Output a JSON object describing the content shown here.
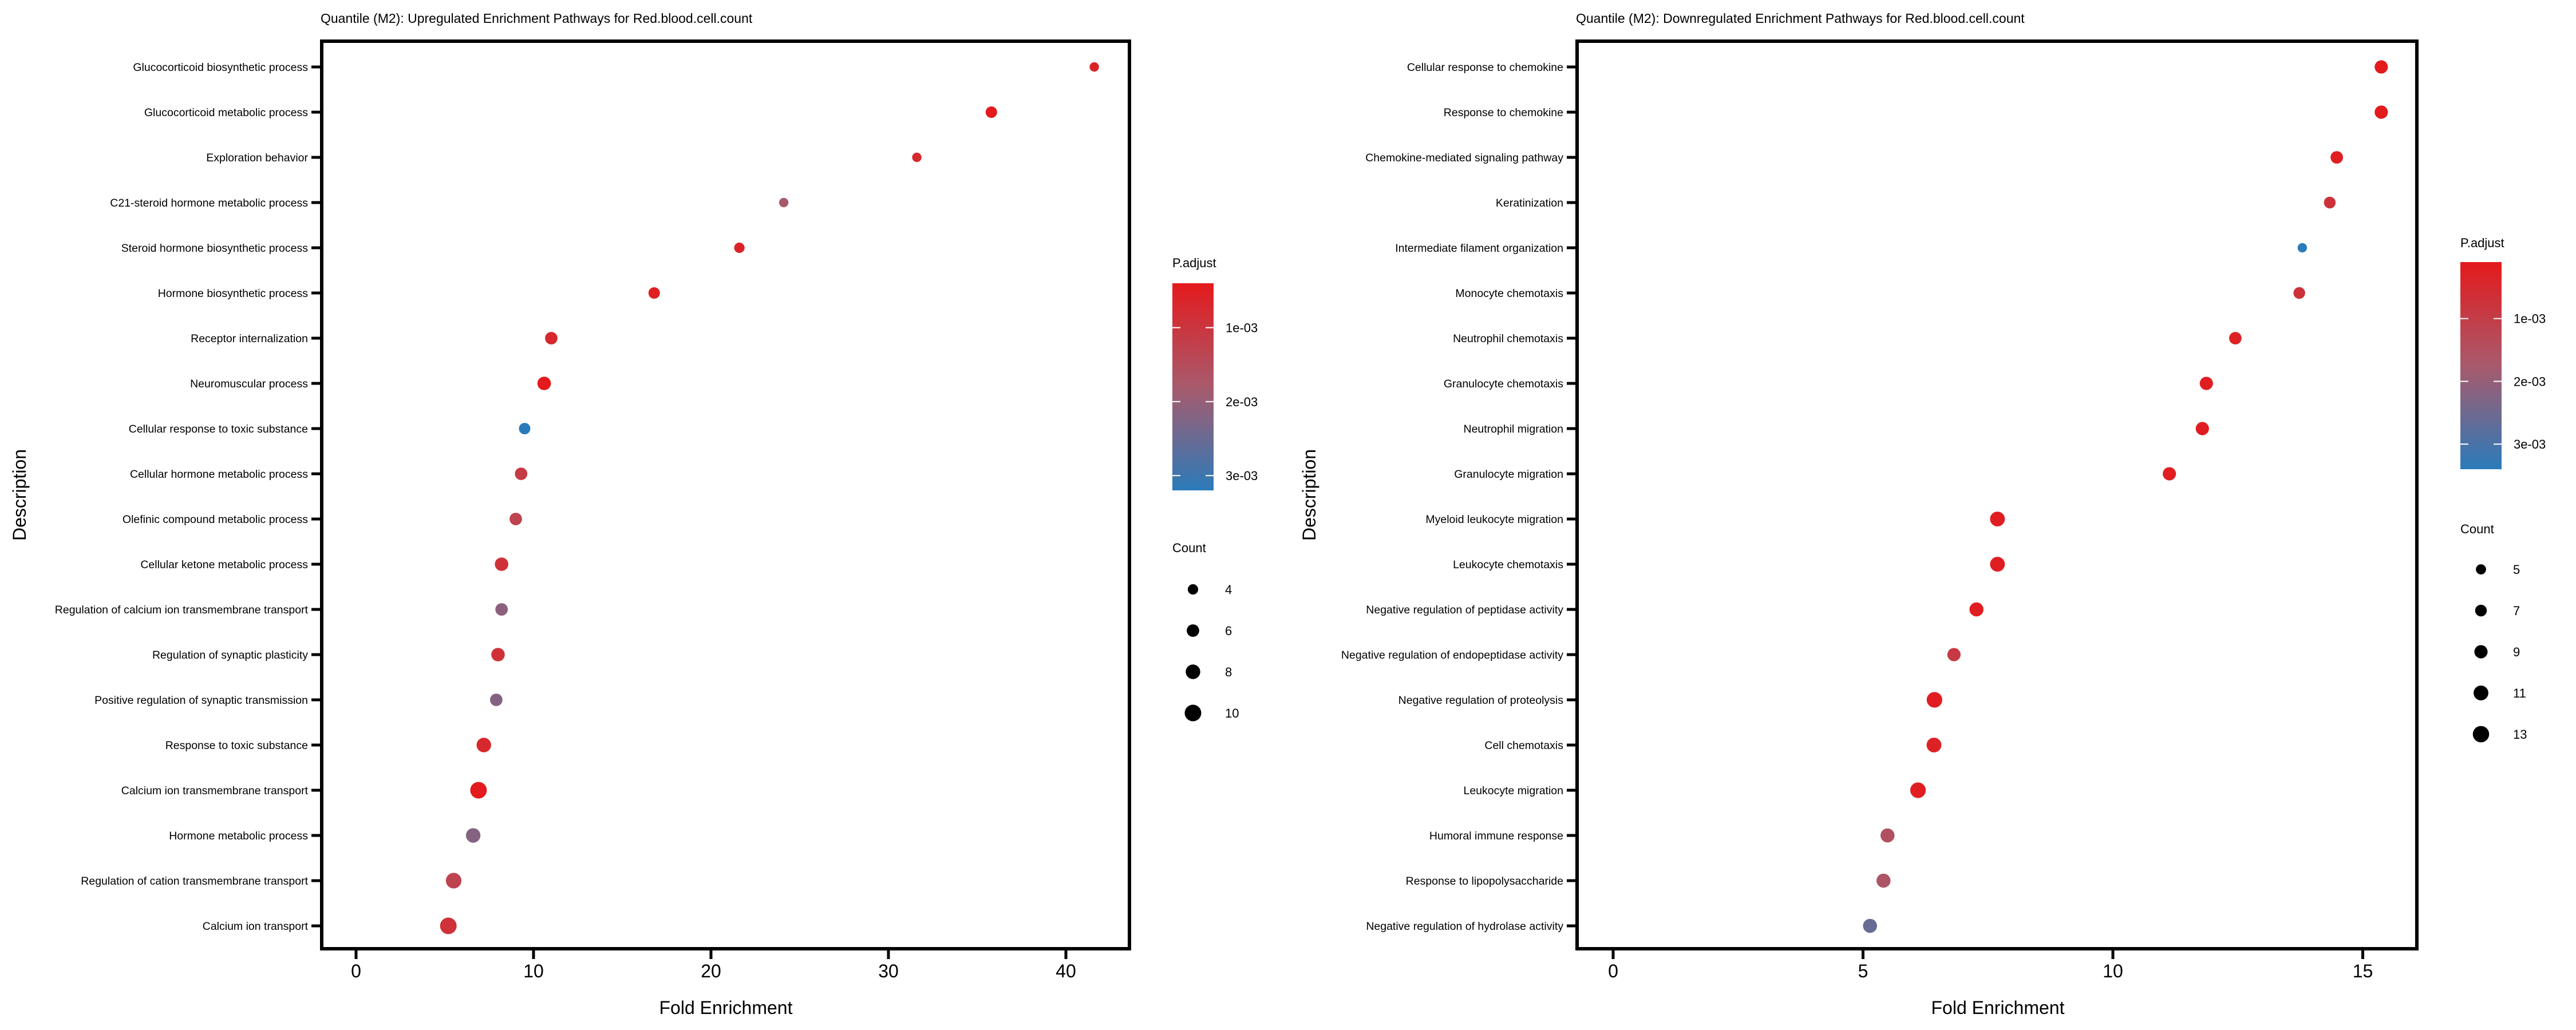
{
  "chart_data": [
    {
      "type": "scatter",
      "subtype": "dot-plot",
      "title": "Quantile (M2): Upregulated Enrichment Pathways for Red.blood.cell.count",
      "xlabel": "Fold Enrichment",
      "ylabel": "Description",
      "xlim": [
        -2,
        44
      ],
      "xticks": [
        0,
        10,
        20,
        30,
        40
      ],
      "grid": false,
      "legend_position": "right",
      "color_legend": {
        "title": "P.adjust",
        "ticks": [
          "1e-03",
          "2e-03",
          "3e-03"
        ],
        "tick_values": [
          0.001,
          0.002,
          0.003
        ],
        "range": [
          0.0004,
          0.0032
        ],
        "low_color": "#e41a1c",
        "high_color": "#2b7bba"
      },
      "size_legend": {
        "title": "Count",
        "values": [
          4,
          6,
          8,
          10
        ]
      },
      "points": [
        {
          "description": "Glucocorticoid biosynthetic process",
          "fold_enrichment": 41.6,
          "count": 3,
          "p_adjust": 0.0006
        },
        {
          "description": "Glucocorticoid metabolic process",
          "fold_enrichment": 35.8,
          "count": 5,
          "p_adjust": 0.0004
        },
        {
          "description": "Exploration behavior",
          "fold_enrichment": 31.6,
          "count": 3,
          "p_adjust": 0.0007
        },
        {
          "description": "C21-steroid hormone metabolic process",
          "fold_enrichment": 24.1,
          "count": 3,
          "p_adjust": 0.0018
        },
        {
          "description": "Steroid hormone biosynthetic process",
          "fold_enrichment": 21.6,
          "count": 4,
          "p_adjust": 0.0006
        },
        {
          "description": "Hormone biosynthetic process",
          "fold_enrichment": 16.8,
          "count": 5,
          "p_adjust": 0.0005
        },
        {
          "description": "Receptor internalization",
          "fold_enrichment": 11.0,
          "count": 6,
          "p_adjust": 0.0007
        },
        {
          "description": "Neuromuscular process",
          "fold_enrichment": 10.6,
          "count": 7,
          "p_adjust": 0.0004
        },
        {
          "description": "Cellular response to toxic substance",
          "fold_enrichment": 9.5,
          "count": 5,
          "p_adjust": 0.0032
        },
        {
          "description": "Cellular hormone metabolic process",
          "fold_enrichment": 9.3,
          "count": 6,
          "p_adjust": 0.0011
        },
        {
          "description": "Olefinic compound metabolic process",
          "fold_enrichment": 9.0,
          "count": 6,
          "p_adjust": 0.0013
        },
        {
          "description": "Cellular ketone metabolic process",
          "fold_enrichment": 8.2,
          "count": 7,
          "p_adjust": 0.0009
        },
        {
          "description": "Regulation of calcium ion transmembrane transport",
          "fold_enrichment": 8.2,
          "count": 6,
          "p_adjust": 0.0021
        },
        {
          "description": "Regulation of synaptic plasticity",
          "fold_enrichment": 8.0,
          "count": 7,
          "p_adjust": 0.0009
        },
        {
          "description": "Positive regulation of synaptic transmission",
          "fold_enrichment": 7.9,
          "count": 6,
          "p_adjust": 0.0022
        },
        {
          "description": "Response to toxic substance",
          "fold_enrichment": 7.2,
          "count": 8,
          "p_adjust": 0.0007
        },
        {
          "description": "Calcium ion transmembrane transport",
          "fold_enrichment": 6.9,
          "count": 10,
          "p_adjust": 0.0004
        },
        {
          "description": "Hormone metabolic process",
          "fold_enrichment": 6.6,
          "count": 8,
          "p_adjust": 0.0022
        },
        {
          "description": "Regulation of cation transmembrane transport",
          "fold_enrichment": 5.5,
          "count": 9,
          "p_adjust": 0.0013
        },
        {
          "description": "Calcium ion transport",
          "fold_enrichment": 5.2,
          "count": 10,
          "p_adjust": 0.0009
        }
      ]
    },
    {
      "type": "scatter",
      "subtype": "dot-plot",
      "title": "Quantile (M2): Downregulated Enrichment Pathways for Red.blood.cell.count",
      "xlabel": "Fold Enrichment",
      "ylabel": "Description",
      "xlim": [
        -0.75,
        16.1
      ],
      "xticks": [
        0,
        5,
        10,
        15
      ],
      "grid": false,
      "legend_position": "right",
      "color_legend": {
        "title": "P.adjust",
        "ticks": [
          "1e-03",
          "2e-03",
          "3e-03"
        ],
        "tick_values": [
          0.001,
          0.002,
          0.003
        ],
        "range": [
          0.0001,
          0.0034
        ],
        "low_color": "#e41a1c",
        "high_color": "#2b7bba"
      },
      "size_legend": {
        "title": "Count",
        "values": [
          5,
          7,
          9,
          11,
          13
        ]
      },
      "points": [
        {
          "description": "Cellular response to chemokine",
          "fold_enrichment": 15.37,
          "count": 9,
          "p_adjust": 0.0001
        },
        {
          "description": "Response to chemokine",
          "fold_enrichment": 15.37,
          "count": 9,
          "p_adjust": 0.0001
        },
        {
          "description": "Chemokine-mediated signaling pathway",
          "fold_enrichment": 14.48,
          "count": 8,
          "p_adjust": 0.0002
        },
        {
          "description": "Keratinization",
          "fold_enrichment": 14.34,
          "count": 7,
          "p_adjust": 0.0007
        },
        {
          "description": "Intermediate filament organization",
          "fold_enrichment": 13.79,
          "count": 4,
          "p_adjust": 0.0034
        },
        {
          "description": "Monocyte chemotaxis",
          "fold_enrichment": 13.73,
          "count": 7,
          "p_adjust": 0.0007
        },
        {
          "description": "Neutrophil chemotaxis",
          "fold_enrichment": 12.45,
          "count": 8,
          "p_adjust": 0.0003
        },
        {
          "description": "Granulocyte chemotaxis",
          "fold_enrichment": 11.87,
          "count": 9,
          "p_adjust": 0.0002
        },
        {
          "description": "Neutrophil migration",
          "fold_enrichment": 11.79,
          "count": 9,
          "p_adjust": 0.0002
        },
        {
          "description": "Granulocyte migration",
          "fold_enrichment": 11.13,
          "count": 9,
          "p_adjust": 0.0002
        },
        {
          "description": "Myeloid leukocyte migration",
          "fold_enrichment": 7.69,
          "count": 11,
          "p_adjust": 0.0002
        },
        {
          "description": "Leukocyte chemotaxis",
          "fold_enrichment": 7.69,
          "count": 11,
          "p_adjust": 0.0002
        },
        {
          "description": "Negative regulation of peptidase activity",
          "fold_enrichment": 7.27,
          "count": 10,
          "p_adjust": 0.0002
        },
        {
          "description": "Negative regulation of endopeptidase activity",
          "fold_enrichment": 6.82,
          "count": 9,
          "p_adjust": 0.0009
        },
        {
          "description": "Negative regulation of proteolysis",
          "fold_enrichment": 6.43,
          "count": 12,
          "p_adjust": 0.0002
        },
        {
          "description": "Cell chemotaxis",
          "fold_enrichment": 6.42,
          "count": 11,
          "p_adjust": 0.0003
        },
        {
          "description": "Leukocyte migration",
          "fold_enrichment": 6.1,
          "count": 12,
          "p_adjust": 0.0002
        },
        {
          "description": "Humoral immune response",
          "fold_enrichment": 5.49,
          "count": 10,
          "p_adjust": 0.0015
        },
        {
          "description": "Response to lipopolysaccharide",
          "fold_enrichment": 5.41,
          "count": 10,
          "p_adjust": 0.0016
        },
        {
          "description": "Negative regulation of hydrolase activity",
          "fold_enrichment": 5.14,
          "count": 10,
          "p_adjust": 0.0026
        }
      ]
    }
  ]
}
